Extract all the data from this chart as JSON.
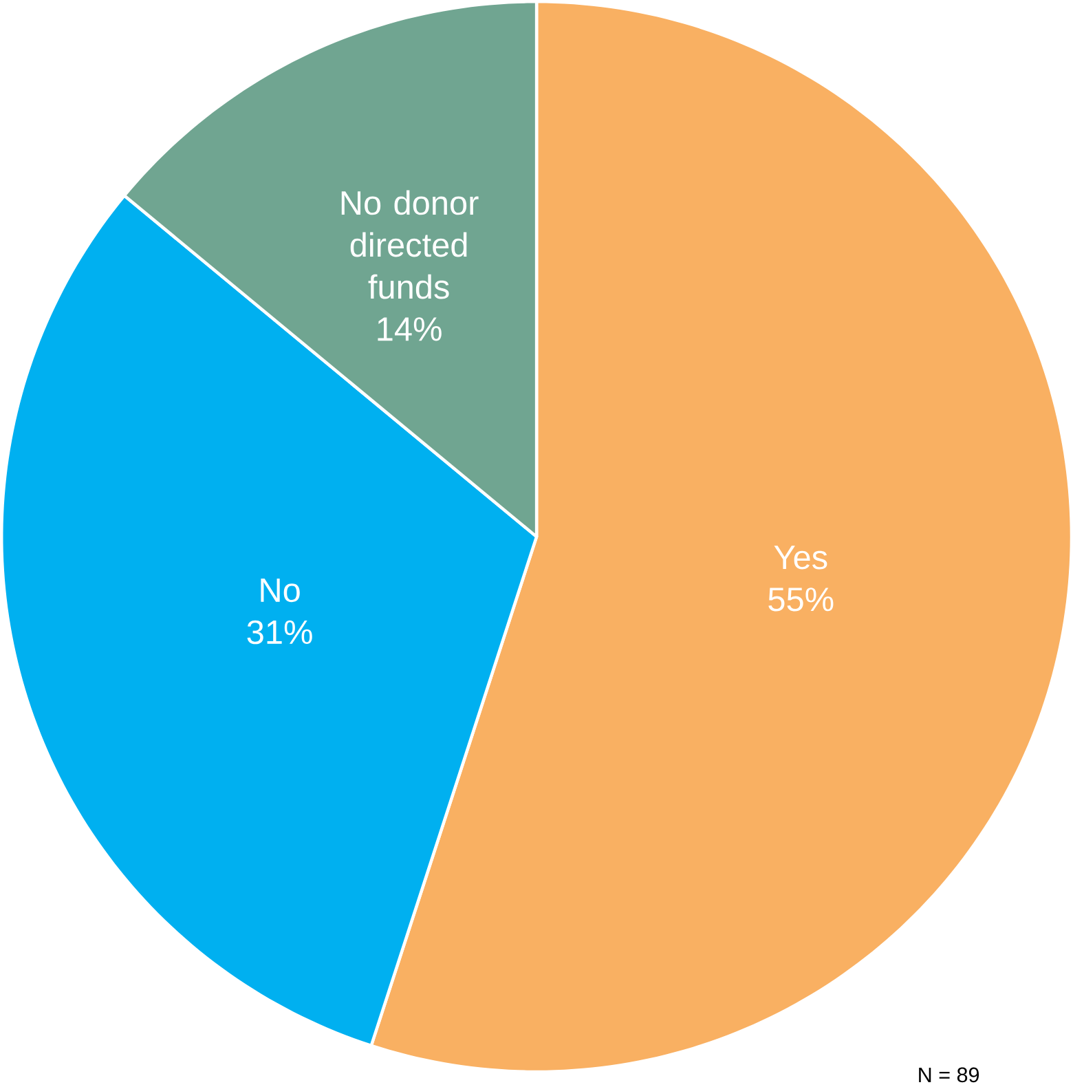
{
  "chart_data": {
    "type": "pie",
    "categories": [
      "Yes",
      "No",
      "No donor directed funds"
    ],
    "values": [
      55,
      31,
      14
    ],
    "value_labels": [
      "55%",
      "31%",
      "14%"
    ],
    "colors": [
      "#f9b062",
      "#00b0f0",
      "#70a591"
    ],
    "annotations": [
      "N = 89"
    ]
  }
}
